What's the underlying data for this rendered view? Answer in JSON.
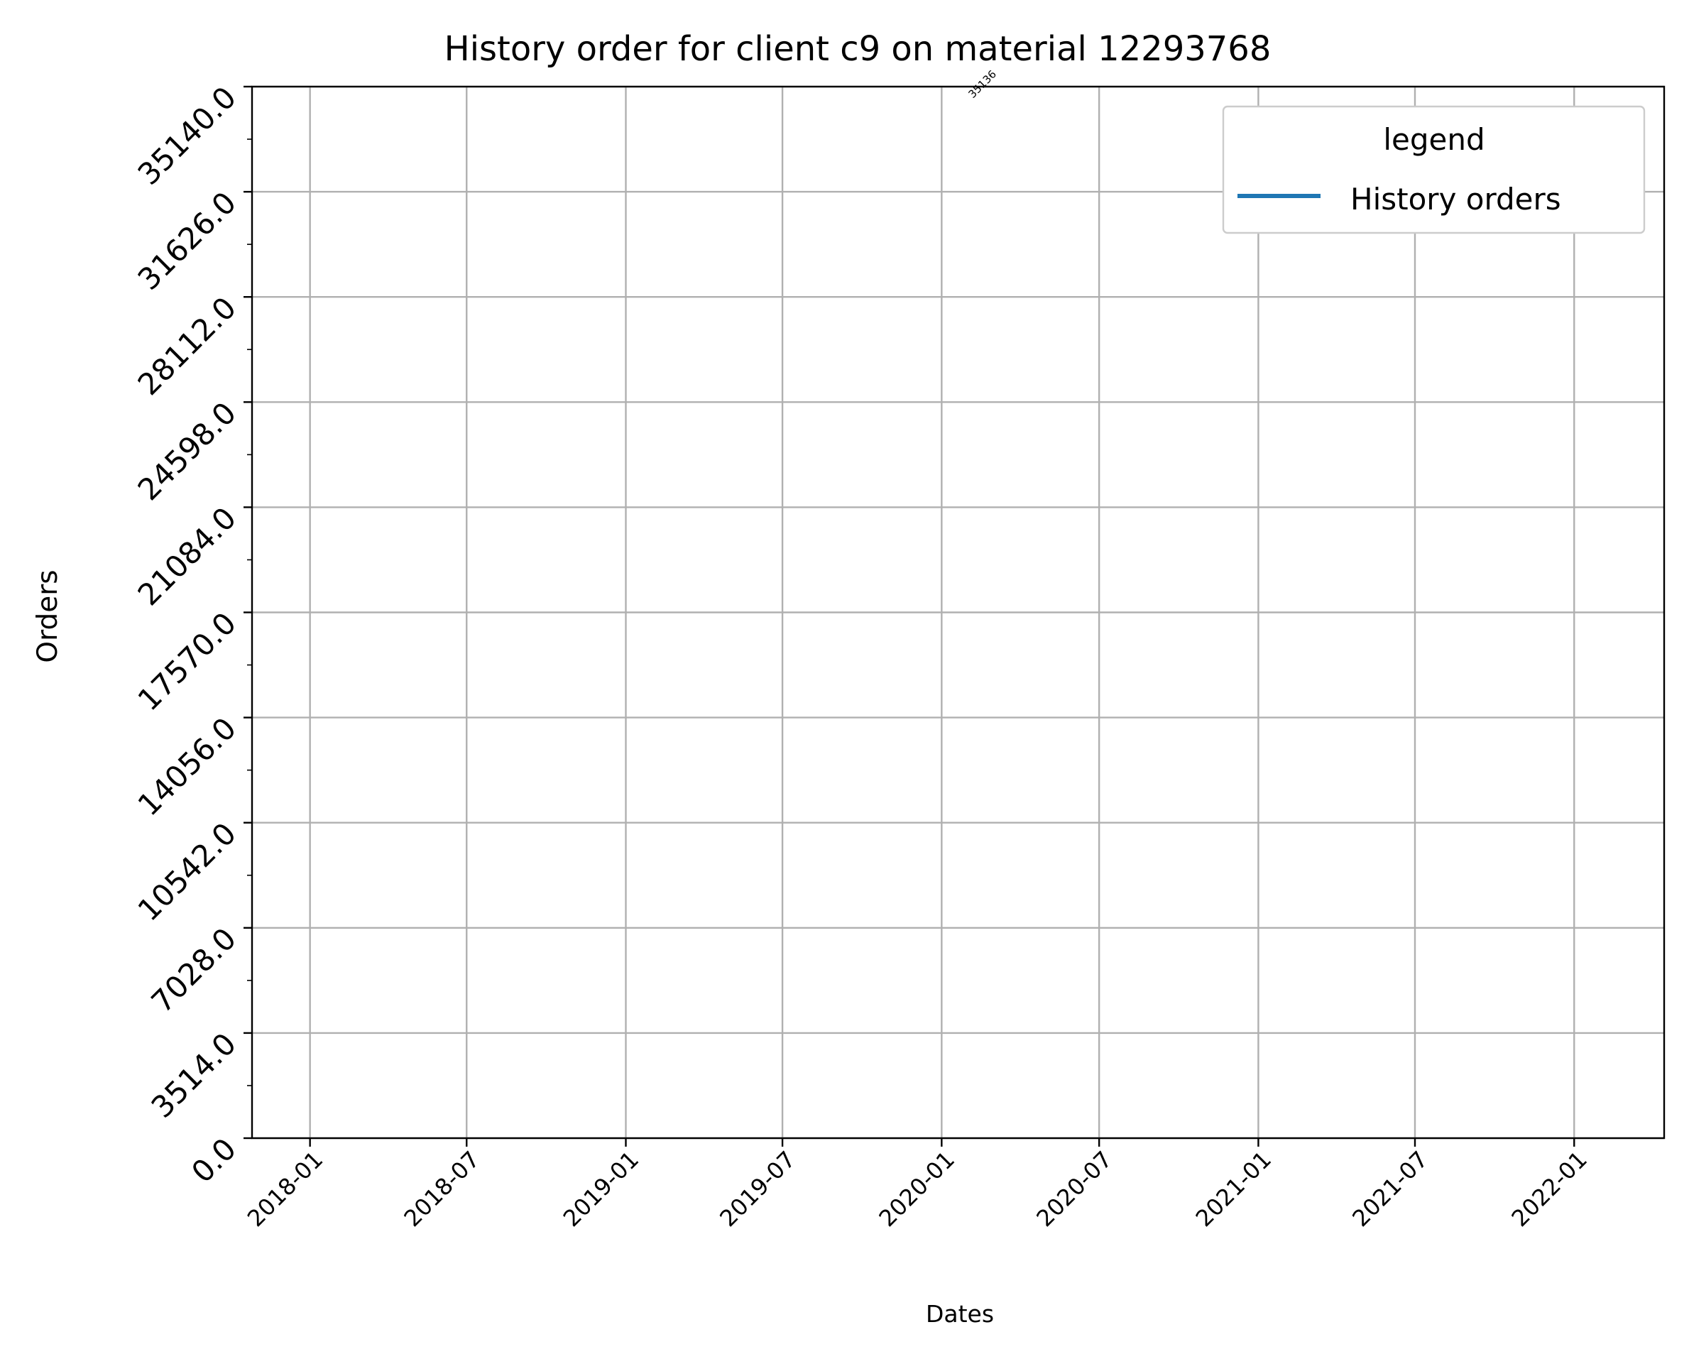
{
  "chart_data": {
    "type": "line",
    "title": "History order for client c9 on material 12293768",
    "xlabel": "Dates",
    "ylabel": "Orders",
    "x_ticks": [
      "2018-01",
      "2018-07",
      "2019-01",
      "2019-07",
      "2020-01",
      "2020-07",
      "2021-01",
      "2021-07",
      "2022-01"
    ],
    "y_ticks": [
      "0.0",
      "3514.0",
      "7028.0",
      "10542.0",
      "14056.0",
      "17570.0",
      "21084.0",
      "24598.0",
      "28112.0",
      "31626.0",
      "35140.0"
    ],
    "xlim": [
      "2017-10-26",
      "2022-04-15"
    ],
    "ylim": [
      0,
      35140
    ],
    "grid": true,
    "legend": {
      "title": "legend",
      "placement": "top-right",
      "entries": [
        {
          "label": "History orders",
          "color": "#1f77b4"
        }
      ]
    },
    "series": [
      {
        "name": "History orders",
        "color": "#1f77b4",
        "points": [
          {
            "x": "2020-01-01",
            "y": 35136
          }
        ]
      }
    ],
    "annotations": [
      {
        "text": "35136",
        "x": "2020-02-20",
        "y": 35136
      }
    ]
  }
}
